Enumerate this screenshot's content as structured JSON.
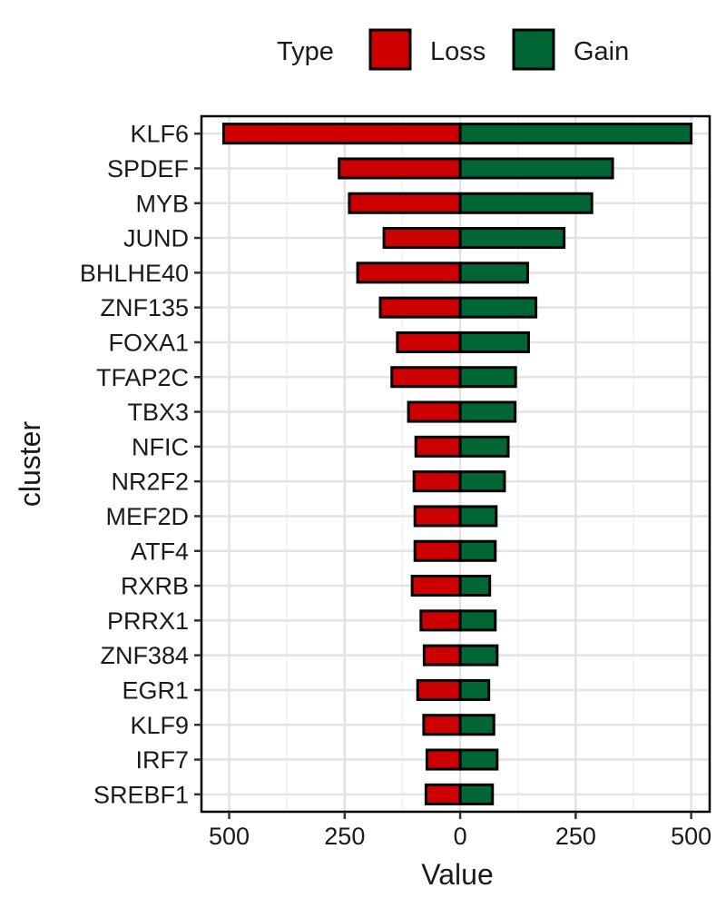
{
  "chart_data": {
    "type": "bar",
    "orientation": "horizontal",
    "stacked": "diverging",
    "xlabel": "Value",
    "ylabel": "cluster",
    "xlim": [
      -560,
      540
    ],
    "xticks": [
      -500,
      -250,
      0,
      250,
      500
    ],
    "xtick_labels": [
      "500",
      "250",
      "0",
      "250",
      "500"
    ],
    "grid": true,
    "legend": {
      "title": "Type",
      "placement": "top"
    },
    "categories": [
      "KLF6",
      "SPDEF",
      "MYB",
      "JUND",
      "BHLHE40",
      "ZNF135",
      "FOXA1",
      "TFAP2C",
      "TBX3",
      "NFIC",
      "NR2F2",
      "MEF2D",
      "ATF4",
      "RXRB",
      "PRRX1",
      "ZNF384",
      "EGR1",
      "KLF9",
      "IRF7",
      "SREBF1"
    ],
    "series": [
      {
        "name": "Loss",
        "color": "#cc0000",
        "values": [
          -512,
          -262,
          -240,
          -165,
          -222,
          -173,
          -136,
          -148,
          -112,
          -96,
          -100,
          -98,
          -98,
          -104,
          -85,
          -78,
          -92,
          -79,
          -72,
          -74
        ]
      },
      {
        "name": "Gain",
        "color": "#006633",
        "values": [
          500,
          330,
          285,
          225,
          146,
          164,
          148,
          120,
          119,
          104,
          96,
          78,
          76,
          64,
          76,
          80,
          62,
          73,
          80,
          70
        ]
      }
    ]
  }
}
